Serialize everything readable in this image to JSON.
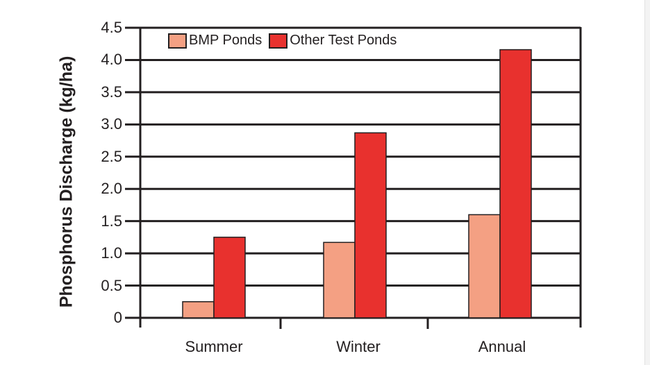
{
  "chart_data": {
    "type": "bar",
    "title": "",
    "xlabel": "",
    "ylabel": "Phosphorus Discharge (kg/ha)",
    "ylim": [
      0,
      4.5
    ],
    "yticks": [
      "0",
      "0.5",
      "1.0",
      "1.5",
      "2.0",
      "2.5",
      "3.0",
      "3.5",
      "4.0",
      "4.5"
    ],
    "grid": true,
    "legend_position": "top-left inside",
    "categories": [
      "Summer",
      "Winter",
      "Annual"
    ],
    "series": [
      {
        "name": "BMP Ponds",
        "color": "#f4a083",
        "values": [
          0.25,
          1.17,
          1.6
        ]
      },
      {
        "name": "Other Test Ponds",
        "color": "#e8312e",
        "values": [
          1.25,
          2.87,
          4.16
        ]
      }
    ]
  },
  "colors": {
    "axis": "#231f20",
    "bmp": "#f4a083",
    "other": "#e8312e",
    "background": "#ffffff"
  }
}
